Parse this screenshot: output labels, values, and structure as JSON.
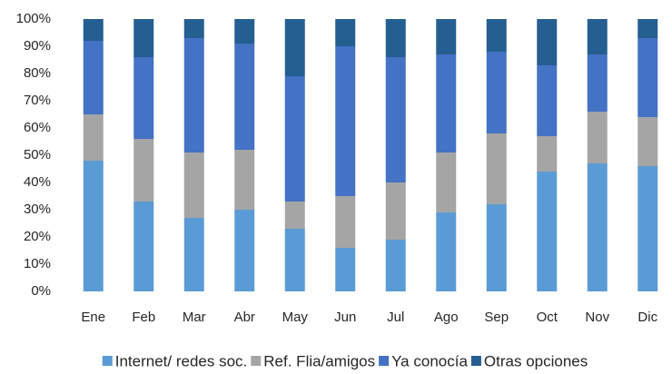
{
  "chart_data": {
    "type": "stacked_bar_percent",
    "categories": [
      "Ene",
      "Feb",
      "Mar",
      "Abr",
      "May",
      "Jun",
      "Jul",
      "Ago",
      "Sep",
      "Oct",
      "Nov",
      "Dic"
    ],
    "series": [
      {
        "name": "Internet/ redes soc.",
        "color": "#5b9bd5",
        "values": [
          48,
          33,
          27,
          30,
          23,
          16,
          19,
          29,
          32,
          44,
          47,
          46
        ]
      },
      {
        "name": "Ref. Flia/amigos",
        "color": "#a5a5a5",
        "values": [
          17,
          23,
          24,
          22,
          10,
          19,
          21,
          22,
          26,
          13,
          19,
          18
        ]
      },
      {
        "name": "Ya conocía",
        "color": "#4472c4",
        "values": [
          27,
          30,
          42,
          39,
          46,
          55,
          46,
          36,
          30,
          26,
          21,
          29
        ]
      },
      {
        "name": "Otras opciones",
        "color": "#255e91",
        "values": [
          8,
          14,
          7,
          9,
          21,
          10,
          14,
          13,
          12,
          17,
          13,
          7
        ]
      }
    ],
    "ylim": [
      0,
      100
    ],
    "yticks": [
      {
        "value": 0,
        "label": "0%"
      },
      {
        "value": 10,
        "label": "10%"
      },
      {
        "value": 20,
        "label": "20%"
      },
      {
        "value": 30,
        "label": "30%"
      },
      {
        "value": 40,
        "label": "40%"
      },
      {
        "value": 50,
        "label": "50%"
      },
      {
        "value": 60,
        "label": "60%"
      },
      {
        "value": 70,
        "label": "70%"
      },
      {
        "value": 80,
        "label": "80%"
      },
      {
        "value": 90,
        "label": "90%"
      },
      {
        "value": 100,
        "label": "100%"
      }
    ],
    "grid": false,
    "legend": "bottom"
  }
}
